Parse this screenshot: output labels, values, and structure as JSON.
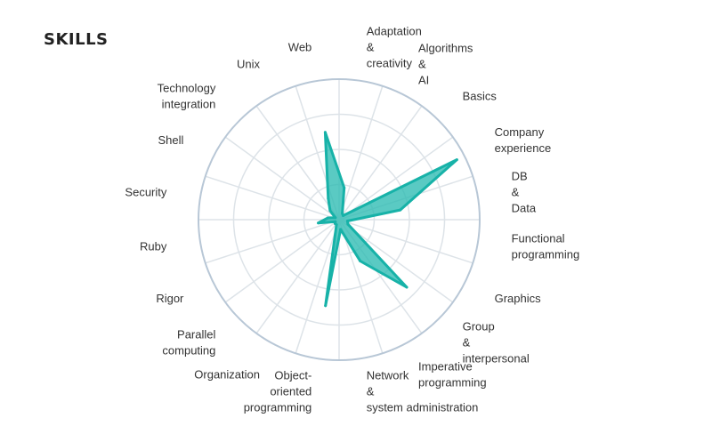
{
  "title": "SKILLS",
  "colors": {
    "ring": "#b8c7d6",
    "grid": "#dde3e8",
    "fill": "#2bbbb2",
    "stroke": "#17b2a8"
  },
  "chart_data": {
    "type": "radar",
    "title": "SKILLS",
    "rmax": 10,
    "grid_rings": 4,
    "axes": [
      "Adaptation & creativity",
      "Algorithms & AI",
      "Basics",
      "Company experience",
      "DB & Data",
      "Functional programming",
      "Graphics",
      "Group & interpersonal",
      "Imperative programming",
      "Network & system administration",
      "Object-oriented programming",
      "Organization",
      "Parallel computing",
      "Rigor",
      "Ruby",
      "Security",
      "Shell",
      "Technology integration",
      "Unix",
      "Web"
    ],
    "series": [
      {
        "values": [
          2.3,
          0.5,
          0.4,
          9.4,
          4.4,
          0.6,
          0.7,
          6.8,
          3.3,
          0.7,
          6.2,
          0.4,
          0.4,
          0.3,
          1.5,
          0.8,
          0.3,
          0.9,
          1.7,
          6.3
        ]
      }
    ]
  }
}
